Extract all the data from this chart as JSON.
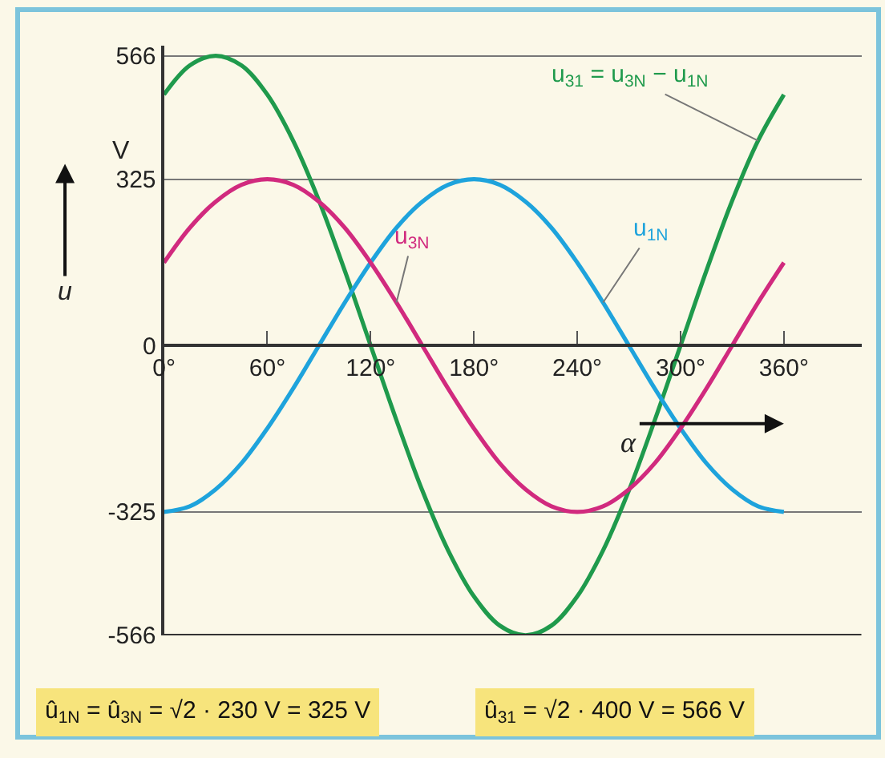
{
  "chart_data": {
    "type": "line",
    "x": [
      0,
      15,
      30,
      45,
      60,
      75,
      90,
      105,
      120,
      135,
      150,
      165,
      180,
      195,
      210,
      225,
      240,
      255,
      270,
      285,
      300,
      315,
      330,
      345,
      360
    ],
    "series": [
      {
        "name": "u$_{31}$ = u$_{3N}$ − u$_{1N}$",
        "color": "#1f9a4c",
        "values": [
          490,
          547,
          566,
          547,
          490,
          400,
          283,
          146,
          0,
          -146,
          -283,
          -400,
          -490,
          -547,
          -566,
          -547,
          -490,
          -400,
          -283,
          -146,
          0,
          146,
          283,
          400,
          490
        ]
      },
      {
        "name": "u$_{1N}$",
        "color": "#1ea3dc",
        "values": [
          -325,
          -314,
          -281,
          -230,
          -162,
          -84,
          0,
          84,
          162,
          230,
          281,
          314,
          325,
          314,
          281,
          230,
          162,
          84,
          0,
          -84,
          -162,
          -230,
          -281,
          -314,
          -325
        ]
      },
      {
        "name": "u$_{3N}$",
        "color": "#d12a7e",
        "values": [
          162,
          230,
          281,
          314,
          325,
          314,
          281,
          230,
          162,
          84,
          0,
          -84,
          -162,
          -230,
          -281,
          -314,
          -325,
          -314,
          -281,
          -230,
          -162,
          -84,
          0,
          84,
          162
        ]
      }
    ],
    "xlabel": "α",
    "ylabel": "u",
    "xlim": [
      0,
      405
    ],
    "xticks": [
      {
        "value": 0,
        "label": "0°"
      },
      {
        "value": 60,
        "label": "60°"
      },
      {
        "value": 120,
        "label": "120°"
      },
      {
        "value": 180,
        "label": "180°"
      },
      {
        "value": 240,
        "label": "240°"
      },
      {
        "value": 300,
        "label": "300°"
      },
      {
        "value": 360,
        "label": "360°"
      }
    ],
    "ylim": [
      -566,
      585
    ],
    "yticks": [
      -566,
      -325,
      0,
      325,
      566
    ],
    "grid": "y",
    "legend": false,
    "marker": "none",
    "line_style": "solid",
    "annotations": [
      "V",
      "û$_{1N}$ = û$_{3N}$ = √2 · 230 V = 325 V",
      "û$_{31}$ = √2 · 400 V = 566 V"
    ]
  }
}
